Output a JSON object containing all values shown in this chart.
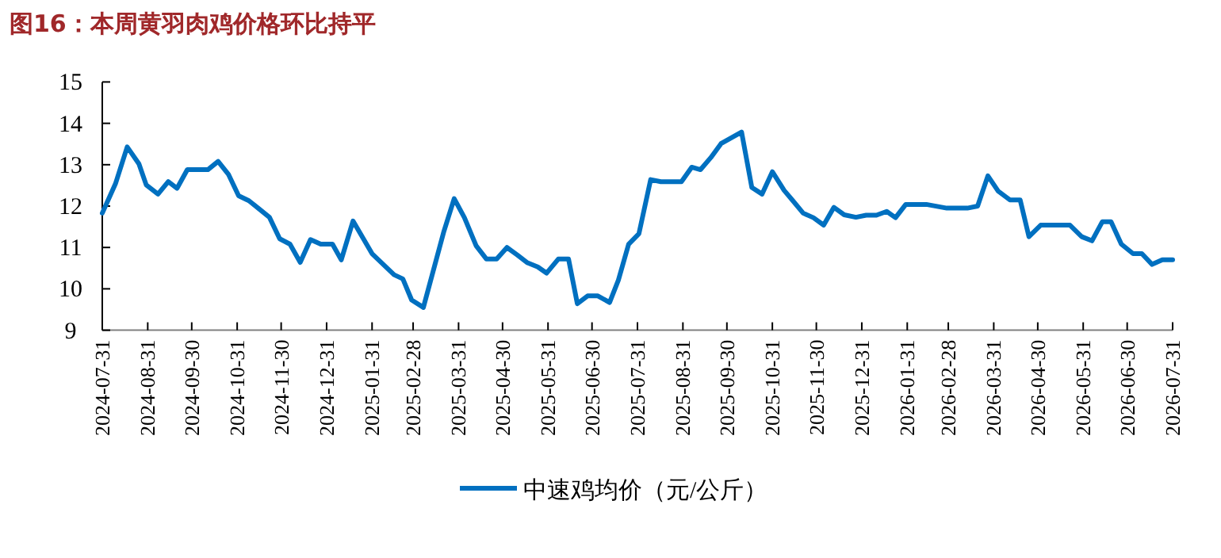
{
  "chart_data": {
    "type": "line",
    "title": "图16：本周黄羽肉鸡价格环比持平",
    "xlim": [
      "2024-07-31",
      "2026-07-31"
    ],
    "xticks": [
      "2024-07-31",
      "2024-08-31",
      "2024-09-30",
      "2024-10-31",
      "2024-11-30",
      "2024-12-31",
      "2025-01-31",
      "2025-02-28",
      "2025-03-31",
      "2025-04-30",
      "2025-05-31",
      "2025-06-30",
      "2025-07-31",
      "2025-08-31",
      "2025-09-30",
      "2025-10-31",
      "2025-11-30",
      "2025-12-31",
      "2026-01-31",
      "2026-02-28",
      "2026-03-31",
      "2026-04-30",
      "2026-05-31",
      "2026-06-30",
      "2026-07-31"
    ],
    "ylim": [
      9,
      15
    ],
    "yticks": [
      9,
      10,
      11,
      12,
      13,
      14,
      15
    ],
    "grid": false,
    "legend": "bottom",
    "marker": "none",
    "line_style": "solid",
    "series": [
      {
        "name": "中速鸡均价（元/公斤）",
        "color": "#0070c0",
        "x": [
          "2024-07-31",
          "2024-08-09",
          "2024-08-17",
          "2024-08-25",
          "2024-08-30",
          "2024-09-07",
          "2024-09-14",
          "2024-09-20",
          "2024-09-27",
          "2024-10-11",
          "2024-10-18",
          "2024-10-25",
          "2024-11-01",
          "2024-11-08",
          "2024-11-15",
          "2024-11-22",
          "2024-11-29",
          "2024-12-06",
          "2024-12-13",
          "2024-12-20",
          "2024-12-27",
          "2025-01-04",
          "2025-01-10",
          "2025-01-18",
          "2025-01-31",
          "2025-02-15",
          "2025-02-21",
          "2025-02-27",
          "2025-03-07",
          "2025-03-21",
          "2025-03-28",
          "2025-04-04",
          "2025-04-12",
          "2025-04-19",
          "2025-04-26",
          "2025-05-03",
          "2025-05-10",
          "2025-05-17",
          "2025-05-24",
          "2025-05-30",
          "2025-06-07",
          "2025-06-14",
          "2025-06-20",
          "2025-06-27",
          "2025-07-04",
          "2025-07-12",
          "2025-07-18",
          "2025-07-25",
          "2025-08-01",
          "2025-08-09",
          "2025-08-16",
          "2025-08-30",
          "2025-09-06",
          "2025-09-12",
          "2025-09-19",
          "2025-09-26",
          "2025-10-10",
          "2025-10-17",
          "2025-10-24",
          "2025-10-31",
          "2025-11-08",
          "2025-11-14",
          "2025-11-21",
          "2025-11-28",
          "2025-12-05",
          "2025-12-12",
          "2025-12-19",
          "2025-12-27",
          "2026-01-03",
          "2026-01-10",
          "2026-01-17",
          "2026-01-23",
          "2026-01-30",
          "2026-02-13",
          "2026-02-27",
          "2026-03-13",
          "2026-03-20",
          "2026-03-27",
          "2026-04-03",
          "2026-04-11",
          "2026-04-18",
          "2026-04-24",
          "2026-05-02",
          "2026-05-22",
          "2026-05-30",
          "2026-06-06",
          "2026-06-13",
          "2026-06-19",
          "2026-06-26",
          "2026-07-04",
          "2026-07-10",
          "2026-07-17",
          "2026-07-24",
          "2026-07-31"
        ],
        "values": [
          11.83,
          12.54,
          13.43,
          13.02,
          12.51,
          12.29,
          12.59,
          12.43,
          12.88,
          12.88,
          13.08,
          12.77,
          12.25,
          12.13,
          11.93,
          11.73,
          11.21,
          11.08,
          10.64,
          11.19,
          11.08,
          11.08,
          10.7,
          11.64,
          10.85,
          10.34,
          10.24,
          9.73,
          9.55,
          11.39,
          12.18,
          11.72,
          11.04,
          10.72,
          10.72,
          11.0,
          10.82,
          10.63,
          10.53,
          10.38,
          10.72,
          10.72,
          9.64,
          9.83,
          9.83,
          9.67,
          10.21,
          11.08,
          11.33,
          12.64,
          12.59,
          12.59,
          12.94,
          12.88,
          13.17,
          13.51,
          13.79,
          12.45,
          12.29,
          12.83,
          12.38,
          12.13,
          11.83,
          11.72,
          11.54,
          11.97,
          11.79,
          11.73,
          11.78,
          11.78,
          11.87,
          11.72,
          12.04,
          12.04,
          11.95,
          11.95,
          12.0,
          12.73,
          12.36,
          12.15,
          12.15,
          11.26,
          11.54,
          11.54,
          11.26,
          11.16,
          11.62,
          11.62,
          11.08,
          10.85,
          10.85,
          10.59,
          10.7,
          10.7
        ]
      }
    ]
  }
}
